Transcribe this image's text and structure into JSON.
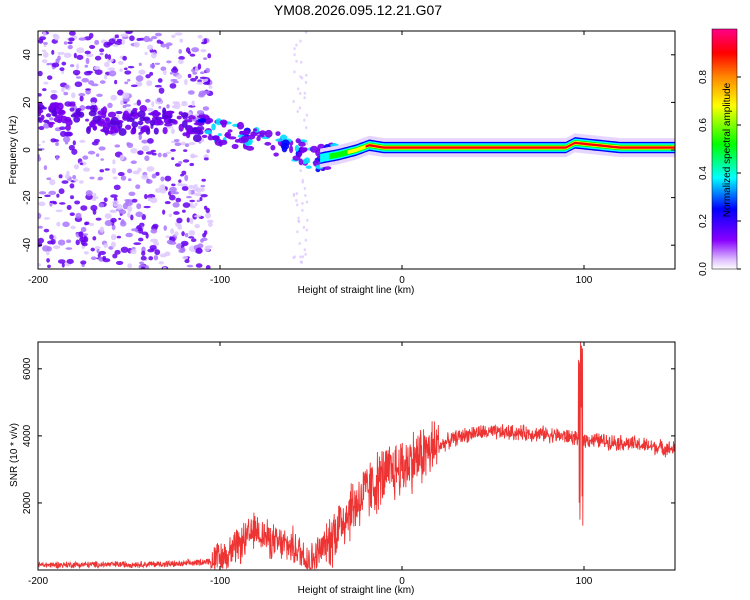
{
  "title": "YM08.2026.095.12.21.G07",
  "chart_data": [
    {
      "type": "heatmap",
      "panel": "spectrogram",
      "xlabel": "Height of straight line (km)",
      "ylabel": "Frequency (Hz)",
      "xlim": [
        -200,
        150
      ],
      "ylim": [
        -50,
        50
      ],
      "xticks": [
        {
          "value": -200,
          "label": "-200"
        },
        {
          "value": -100,
          "label": "-100"
        },
        {
          "value": 0,
          "label": "0"
        },
        {
          "value": 100,
          "label": "100"
        }
      ],
      "yticks": [
        {
          "value": -40,
          "label": "-40"
        },
        {
          "value": -20,
          "label": "-20"
        },
        {
          "value": 0,
          "label": "0"
        },
        {
          "value": 20,
          "label": "20"
        },
        {
          "value": 40,
          "label": "40"
        }
      ],
      "ridge": {
        "description": "dominant frequency track (Hz) vs height (km)",
        "x": [
          -200,
          -160,
          -130,
          -110,
          -90,
          -70,
          -55,
          -48,
          -42,
          -35,
          -25,
          -18,
          -10,
          0,
          10,
          30,
          60,
          90,
          95,
          120,
          150
        ],
        "y": [
          16,
          12,
          13,
          9,
          6,
          3,
          -1,
          -4,
          -3,
          -2,
          0,
          2,
          1,
          1,
          1,
          1,
          1,
          1,
          3,
          1,
          1
        ]
      },
      "colorbar": {
        "label": "Normalized spectral amplitude",
        "range": [
          0,
          1
        ],
        "ticks": [
          {
            "value": 0.0,
            "label": "0.0"
          },
          {
            "value": 0.2,
            "label": "0.2"
          },
          {
            "value": 0.4,
            "label": "0.4"
          },
          {
            "value": 0.6,
            "label": "0.6"
          },
          {
            "value": 0.8,
            "label": "0.8"
          }
        ],
        "colormap": [
          "#ffffff",
          "#8800ff",
          "#0000ff",
          "#00ffff",
          "#00ff00",
          "#ffff00",
          "#ff8800",
          "#ff0000",
          "#ff0088"
        ]
      }
    },
    {
      "type": "line",
      "panel": "snr",
      "xlabel": "Height of straight line (km)",
      "ylabel": "SNR (10 * v/v)",
      "xlim": [
        -200,
        150
      ],
      "ylim": [
        0,
        6800
      ],
      "color": "#ee3333",
      "xticks": [
        {
          "value": -200,
          "label": "-200"
        },
        {
          "value": -100,
          "label": "-100"
        },
        {
          "value": 0,
          "label": "0"
        },
        {
          "value": 100,
          "label": "100"
        }
      ],
      "yticks": [
        {
          "value": 2000,
          "label": "2000"
        },
        {
          "value": 4000,
          "label": "4000"
        },
        {
          "value": 6000,
          "label": "6000"
        }
      ],
      "envelope": {
        "description": "approximate mean SNR level vs height (km); trace shows noise around this",
        "x": [
          -200,
          -120,
          -100,
          -90,
          -80,
          -70,
          -60,
          -50,
          -40,
          -30,
          -20,
          -10,
          0,
          10,
          20,
          30,
          40,
          60,
          80,
          95,
          100,
          120,
          150
        ],
        "y": [
          150,
          180,
          300,
          700,
          1200,
          800,
          700,
          250,
          900,
          1700,
          2300,
          2800,
          3100,
          3400,
          3700,
          3950,
          4100,
          4100,
          4050,
          3950,
          3900,
          3800,
          3600
        ]
      },
      "annotations": [
        {
          "x": 98,
          "description": "sharp spike up to ~6800 and dip to ~1300 near 98 km"
        }
      ]
    }
  ]
}
